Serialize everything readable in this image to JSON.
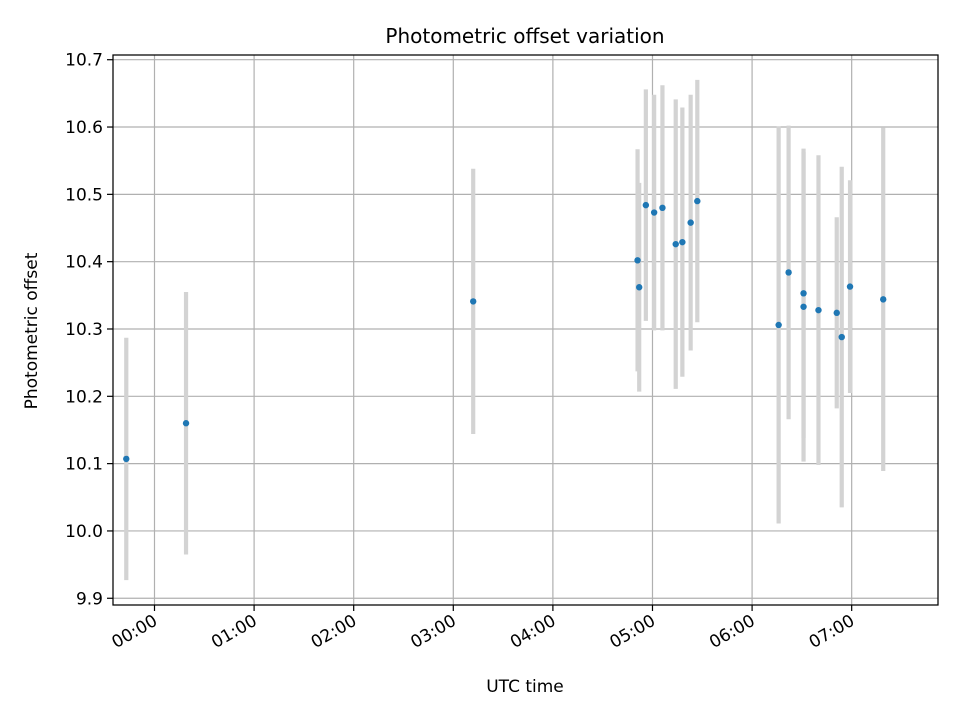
{
  "chart_data": {
    "type": "scatter",
    "title": "Photometric offset variation",
    "xlabel": "UTC time",
    "ylabel": "Photometric offset",
    "x_unit": "UTC time (HH:MM)",
    "xlim": [
      "23:35",
      "07:52"
    ],
    "ylim": [
      9.89,
      10.707
    ],
    "x_ticks": [
      "00:00",
      "01:00",
      "02:00",
      "03:00",
      "04:00",
      "05:00",
      "06:00",
      "07:00"
    ],
    "y_ticks": [
      "9.9",
      "10.0",
      "10.1",
      "10.2",
      "10.3",
      "10.4",
      "10.5",
      "10.6",
      "10.7"
    ],
    "grid": true,
    "legend": "none",
    "colors": {
      "point": "#1f77b4",
      "errorbar": "#d3d3d3",
      "grid": "#b0b0b0",
      "axes": "#000000"
    },
    "series": [
      {
        "points": [
          {
            "x": "23:43",
            "y": 10.107,
            "yerr": 0.18
          },
          {
            "x": "00:19",
            "y": 10.16,
            "yerr": 0.195
          },
          {
            "x": "03:12",
            "y": 10.341,
            "yerr": 0.197
          },
          {
            "x": "04:51",
            "y": 10.402,
            "yerr": 0.165
          },
          {
            "x": "04:52",
            "y": 10.362,
            "yerr": 0.155
          },
          {
            "x": "04:56",
            "y": 10.484,
            "yerr": 0.172
          },
          {
            "x": "05:01",
            "y": 10.473,
            "yerr": 0.175
          },
          {
            "x": "05:06",
            "y": 10.48,
            "yerr": 0.182
          },
          {
            "x": "05:14",
            "y": 10.426,
            "yerr": 0.215
          },
          {
            "x": "05:18",
            "y": 10.429,
            "yerr": 0.2
          },
          {
            "x": "05:23",
            "y": 10.458,
            "yerr": 0.19
          },
          {
            "x": "05:27",
            "y": 10.49,
            "yerr": 0.18
          },
          {
            "x": "06:16",
            "y": 10.306,
            "yerr": 0.295
          },
          {
            "x": "06:22",
            "y": 10.384,
            "yerr": 0.218
          },
          {
            "x": "06:31",
            "y": 10.353,
            "yerr": 0.215
          },
          {
            "x": "06:31",
            "y": 10.333,
            "yerr": 0.23
          },
          {
            "x": "06:40",
            "y": 10.328,
            "yerr": 0.23
          },
          {
            "x": "06:51",
            "y": 10.324,
            "yerr": 0.142
          },
          {
            "x": "06:54",
            "y": 10.288,
            "yerr": 0.253
          },
          {
            "x": "06:59",
            "y": 10.363,
            "yerr": 0.158
          },
          {
            "x": "07:19",
            "y": 10.344,
            "yerr": 0.255
          }
        ]
      }
    ]
  }
}
